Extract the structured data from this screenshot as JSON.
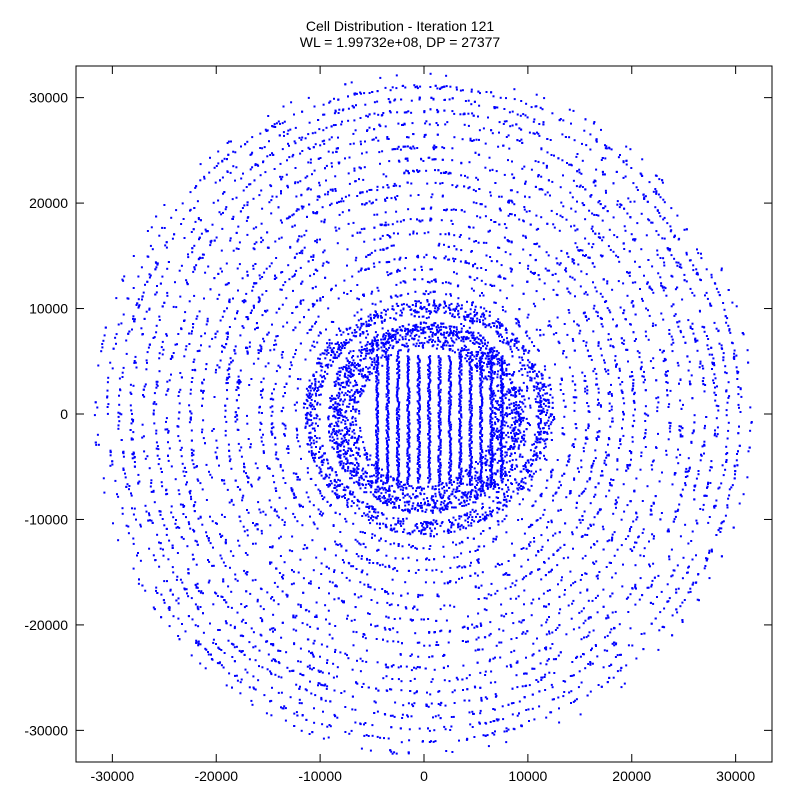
{
  "chart_data": {
    "type": "scatter",
    "title": "Cell Distribution - Iteration 121",
    "subtitle": "WL = 1.99732e+08, DP = 27377",
    "xlabel": "",
    "ylabel": "",
    "xlim": [
      -33500,
      33500
    ],
    "ylim": [
      -33000,
      33000
    ],
    "xticks": [
      -30000,
      -20000,
      -10000,
      0,
      10000,
      20000,
      30000
    ],
    "yticks": [
      30000,
      20000,
      10000,
      0,
      -10000,
      -20000,
      -30000
    ],
    "grid": false,
    "marker_color": "#0000ff",
    "marker": "dot",
    "distribution": {
      "center": [
        0,
        0
      ],
      "outer_radius": 32000,
      "inner_ring_radius": 11000,
      "core_columns_x": [
        -4500,
        -3500,
        -2500,
        -1500,
        -500,
        500,
        1500,
        2500,
        3500,
        4500,
        5500,
        6500,
        7500
      ],
      "core_columns_y_range": [
        -6500,
        5500
      ]
    }
  }
}
